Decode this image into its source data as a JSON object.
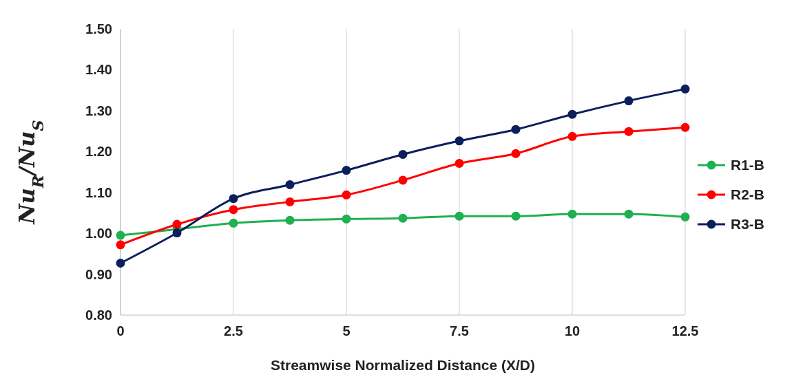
{
  "chart_data": {
    "type": "line",
    "xlabel": "Streamwise Normalized Distance (X/D)",
    "ylabel": "Nu$_{R}$/Nu$_{S}$",
    "x": [
      0,
      1.25,
      2.5,
      3.75,
      5,
      6.25,
      7.5,
      8.75,
      10,
      11.25,
      12.5
    ],
    "series": [
      {
        "name": "R1-B",
        "color": "#1fb050",
        "values": [
          0.995,
          1.01,
          1.025,
          1.032,
          1.035,
          1.037,
          1.042,
          1.042,
          1.047,
          1.047,
          1.04
        ]
      },
      {
        "name": "R2-B",
        "color": "#ff0000",
        "values": [
          0.972,
          1.022,
          1.058,
          1.077,
          1.094,
          1.13,
          1.171,
          1.195,
          1.237,
          1.249,
          1.259
        ]
      },
      {
        "name": "R3-B",
        "color": "#0b1f5c",
        "values": [
          0.927,
          1.001,
          1.085,
          1.119,
          1.154,
          1.193,
          1.226,
          1.254,
          1.291,
          1.324,
          1.353
        ]
      }
    ],
    "xlim": [
      0,
      12.5
    ],
    "xticks": [
      0,
      {
        "value": 2.5,
        "label": "2.5"
      },
      5,
      {
        "value": 7.5,
        "label": "7.5"
      },
      10,
      {
        "value": 12.5,
        "label": "12.5"
      }
    ],
    "ylim": [
      0.8,
      1.5
    ],
    "yticks": [
      {
        "value": 0.8,
        "label": "0.80"
      },
      {
        "value": 0.9,
        "label": "0.90"
      },
      {
        "value": 1.0,
        "label": "1.00"
      },
      {
        "value": 1.1,
        "label": "1.10"
      },
      {
        "value": 1.2,
        "label": "1.20"
      },
      {
        "value": 1.3,
        "label": "1.30"
      },
      {
        "value": 1.4,
        "label": "1.40"
      },
      {
        "value": 1.5,
        "label": "1.50"
      }
    ],
    "grid": "x",
    "legend": "right",
    "marker": "circle",
    "line_style": "solid"
  }
}
